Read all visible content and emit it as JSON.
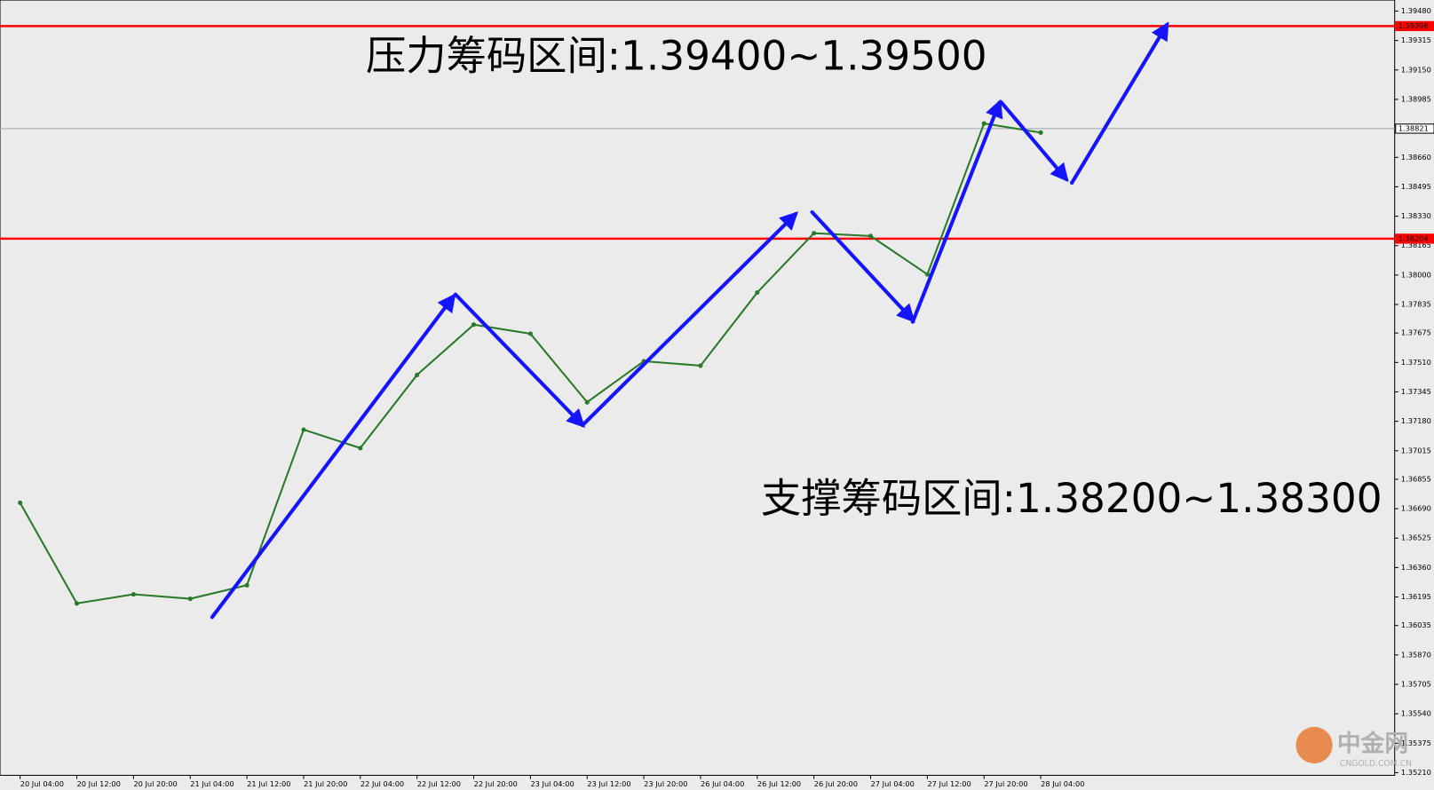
{
  "chart_data": {
    "type": "line",
    "annotations": [
      "压力筹码区间:1.39400~1.39500",
      "支撑筹码区间:1.38200~1.38300"
    ],
    "watermark": "中金网",
    "watermark_sub": "CNGOLD.COM.CN",
    "categories": [
      "20 Jul 04:00",
      "20 Jul 12:00",
      "20 Jul 20:00",
      "21 Jul 04:00",
      "21 Jul 12:00",
      "21 Jul 20:00",
      "22 Jul 04:00",
      "22 Jul 12:00",
      "22 Jul 20:00",
      "23 Jul 04:00",
      "23 Jul 12:00",
      "23 Jul 20:00",
      "26 Jul 04:00",
      "26 Jul 12:00",
      "26 Jul 20:00",
      "27 Jul 04:00",
      "27 Jul 12:00",
      "27 Jul 20:00",
      "28 Jul 04:00"
    ],
    "series": [
      {
        "color": "#2a7a2a",
        "values": [
          1.36723,
          1.36159,
          1.3621,
          1.36185,
          1.36261,
          1.37133,
          1.3703,
          1.3744,
          1.37722,
          1.37671,
          1.37287,
          1.37517,
          1.37492,
          1.37902,
          1.38235,
          1.38219,
          1.38004,
          1.3885,
          1.38799
        ]
      }
    ],
    "levels": [
      {
        "value": 1.39396,
        "label": "1.39396",
        "color": "#ff0000"
      },
      {
        "value": 1.38821,
        "label": "1.38821",
        "color": "#9aa6b2"
      },
      {
        "value": 1.38204,
        "label": "1.38204",
        "color": "#ff0000"
      }
    ],
    "ylim": [
      1.35195,
      1.39542
    ],
    "yticks": [
      {
        "value": 1.3948,
        "label": "1.39480"
      },
      {
        "value": 1.39315,
        "label": "1.39315"
      },
      {
        "value": 1.3915,
        "label": "1.39150"
      },
      {
        "value": 1.38985,
        "label": "1.38985"
      },
      {
        "value": 1.3866,
        "label": "1.38660"
      },
      {
        "value": 1.38495,
        "label": "1.38495"
      },
      {
        "value": 1.3833,
        "label": "1.38330"
      },
      {
        "value": 1.38165,
        "label": "1.38165"
      },
      {
        "value": 1.38,
        "label": "1.38000"
      },
      {
        "value": 1.37835,
        "label": "1.37835"
      },
      {
        "value": 1.37675,
        "label": "1.37675"
      },
      {
        "value": 1.3751,
        "label": "1.37510"
      },
      {
        "value": 1.37345,
        "label": "1.37345"
      },
      {
        "value": 1.3718,
        "label": "1.37180"
      },
      {
        "value": 1.37015,
        "label": "1.37015"
      },
      {
        "value": 1.36855,
        "label": "1.36855"
      },
      {
        "value": 1.3669,
        "label": "1.36690"
      },
      {
        "value": 1.36525,
        "label": "1.36525"
      },
      {
        "value": 1.3636,
        "label": "1.36360"
      },
      {
        "value": 1.36195,
        "label": "1.36195"
      },
      {
        "value": 1.36035,
        "label": "1.36035"
      },
      {
        "value": 1.3587,
        "label": "1.35870"
      },
      {
        "value": 1.35705,
        "label": "1.35705"
      },
      {
        "value": 1.3554,
        "label": "1.35540"
      },
      {
        "value": 1.35375,
        "label": "1.35375"
      },
      {
        "value": 1.3521,
        "label": "1.35210"
      }
    ]
  }
}
